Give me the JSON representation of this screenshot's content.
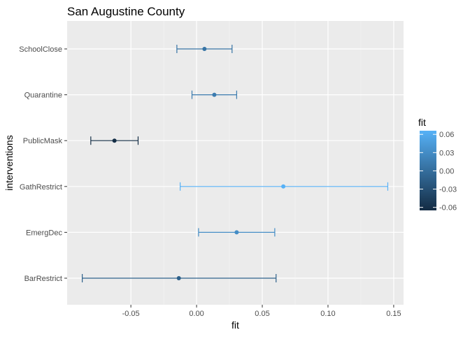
{
  "chart_data": {
    "type": "errorbar",
    "title": "San Augustine County",
    "xlabel": "fit",
    "ylabel": "interventions",
    "xlim": [
      -0.0985,
      0.1575
    ],
    "x_ticks": [
      -0.05,
      0.0,
      0.05,
      0.1,
      0.15
    ],
    "x_tick_labels": [
      "-0.05",
      "0.00",
      "0.05",
      "0.10",
      "0.15"
    ],
    "categories": [
      "SchoolClose",
      "Quarantine",
      "PublicMask",
      "GathRestrict",
      "EmergDec",
      "BarRestrict"
    ],
    "points": [
      {
        "label": "SchoolClose",
        "fit": 0.006,
        "lower": -0.015,
        "upper": 0.027
      },
      {
        "label": "Quarantine",
        "fit": 0.0135,
        "lower": -0.0035,
        "upper": 0.0305
      },
      {
        "label": "PublicMask",
        "fit": -0.0625,
        "lower": -0.0805,
        "upper": -0.0445
      },
      {
        "label": "GathRestrict",
        "fit": 0.066,
        "lower": -0.0125,
        "upper": 0.1455
      },
      {
        "label": "EmergDec",
        "fit": 0.0305,
        "lower": 0.0015,
        "upper": 0.0595
      },
      {
        "label": "BarRestrict",
        "fit": -0.0135,
        "lower": -0.087,
        "upper": 0.0605
      }
    ],
    "grid": true,
    "legend": {
      "title": "fit",
      "position": "right",
      "type": "colorbar",
      "min": -0.065,
      "max": 0.066,
      "ticks": [
        -0.06,
        -0.03,
        0.0,
        0.03,
        0.06
      ],
      "tick_labels": [
        "-0.06",
        "-0.03",
        "0.00",
        "0.03",
        "0.06"
      ],
      "color_low": "#132b43",
      "color_high": "#56b1f7"
    },
    "colors": {
      "panel_background": "#ebebeb",
      "grid_major": "#ffffff",
      "grid_minor": "#f5f5f5",
      "text": "#000000",
      "tick_text": "#4d4d4d",
      "tick_mark": "#333333"
    }
  }
}
